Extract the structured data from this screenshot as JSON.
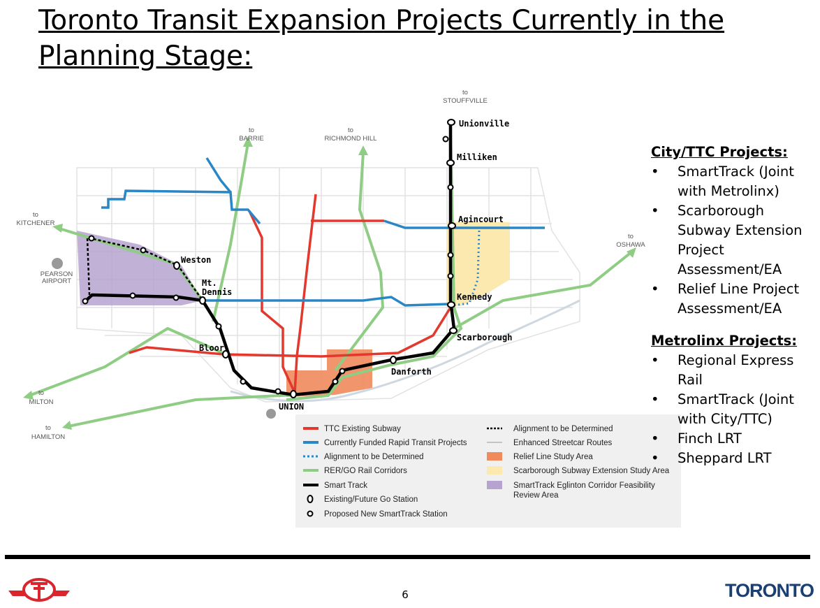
{
  "title": "Toronto Transit Expansion Projects Currently in the Planning Stage:",
  "destinations": [
    {
      "to": "to",
      "name": "STOUFFVILLE"
    },
    {
      "to": "to",
      "name": "BARRIE"
    },
    {
      "to": "to",
      "name": "RICHMOND HILL"
    },
    {
      "to": "to",
      "name": "KITCHENER"
    },
    {
      "to": "to",
      "name": "OSHAWA"
    },
    {
      "to": "to",
      "name": "MILTON"
    },
    {
      "to": "to",
      "name": "HAMILTON"
    }
  ],
  "airport": [
    "PEARSON",
    "AIRPORT"
  ],
  "stations": [
    "Unionville",
    "Milliken",
    "Agincourt",
    "Kennedy",
    "Scarborough",
    "Danforth",
    "UNION",
    "Bloor",
    "Mt.",
    "Dennis",
    "Weston"
  ],
  "legend": {
    "items": [
      "TTC Existing Subway",
      "Currently Funded Rapid Transit Projects",
      "Alignment to be Determined",
      "RER/GO Rail Corridors",
      "Smart Track",
      "Existing/Future Go Station",
      "Proposed New SmartTrack Station",
      "Alignment to be Determined",
      "Enhanced Streetcar Routes",
      "Relief Line Study Area",
      "Scarborough Subway Extension Study Area",
      "SmartTrack Eglinton Corridor Feasibility",
      "Review Area"
    ]
  },
  "sidebar": {
    "sections": [
      {
        "heading": "City/TTC Projects:",
        "items": [
          "SmartTrack (Joint with Metrolinx)",
          "Scarborough Subway Extension Project Assessment/EA",
          "Relief Line Project Assessment/EA"
        ]
      },
      {
        "heading": "Metrolinx Projects:",
        "items": [
          "Regional Express Rail",
          "SmartTrack (Joint with City/TTC)",
          "Finch LRT",
          "Sheppard LRT"
        ]
      }
    ]
  },
  "page_number": "6",
  "logo": "TORONTO"
}
